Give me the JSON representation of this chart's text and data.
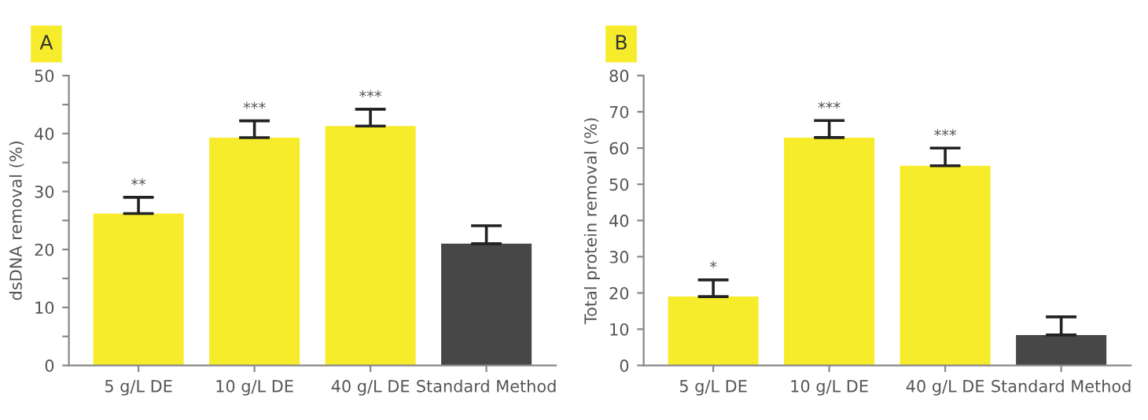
{
  "chart_data": [
    {
      "type": "bar",
      "title": "A",
      "ylabel": "dsDNA removal (%)",
      "categories": [
        "5 g/L DE",
        "10 g/L DE",
        "40 g/L DE",
        "Standard Method"
      ],
      "values": [
        26.2,
        39.3,
        41.3,
        21.0
      ],
      "colors": [
        "#f7ec2b",
        "#f7ec2b",
        "#f7ec2b",
        "#474747"
      ],
      "errors": [
        [
          26.2,
          29.0
        ],
        [
          39.3,
          42.2
        ],
        [
          41.3,
          44.2
        ],
        [
          21.0,
          24.1
        ]
      ],
      "ylim": [
        0,
        50
      ],
      "yticks": [
        0,
        {
          "value": 5,
          "label": null
        },
        10,
        {
          "value": 15,
          "label": null
        },
        20,
        {
          "value": 25,
          "label": null
        },
        30,
        {
          "value": 35,
          "label": null
        },
        40,
        {
          "value": 45,
          "label": null
        },
        50
      ],
      "annotations": [
        "**",
        "***",
        "***"
      ],
      "grid": false
    },
    {
      "type": "bar",
      "title": "B",
      "ylabel": "Total protein removal (%)",
      "categories": [
        "5 g/L DE",
        "10 g/L DE",
        "40 g/L DE",
        "Standard Method"
      ],
      "values": [
        19.0,
        62.9,
        55.1,
        8.4
      ],
      "colors": [
        "#f7ec2b",
        "#f7ec2b",
        "#f7ec2b",
        "#474747"
      ],
      "errors": [
        [
          19.0,
          23.6
        ],
        [
          62.9,
          67.6
        ],
        [
          55.1,
          60.0
        ],
        [
          8.4,
          13.4
        ]
      ],
      "ylim": [
        0,
        80
      ],
      "yticks": [
        0,
        10,
        20,
        30,
        40,
        50,
        60,
        70,
        80
      ],
      "annotations": [
        "*",
        "***",
        "***"
      ],
      "grid": false
    }
  ]
}
